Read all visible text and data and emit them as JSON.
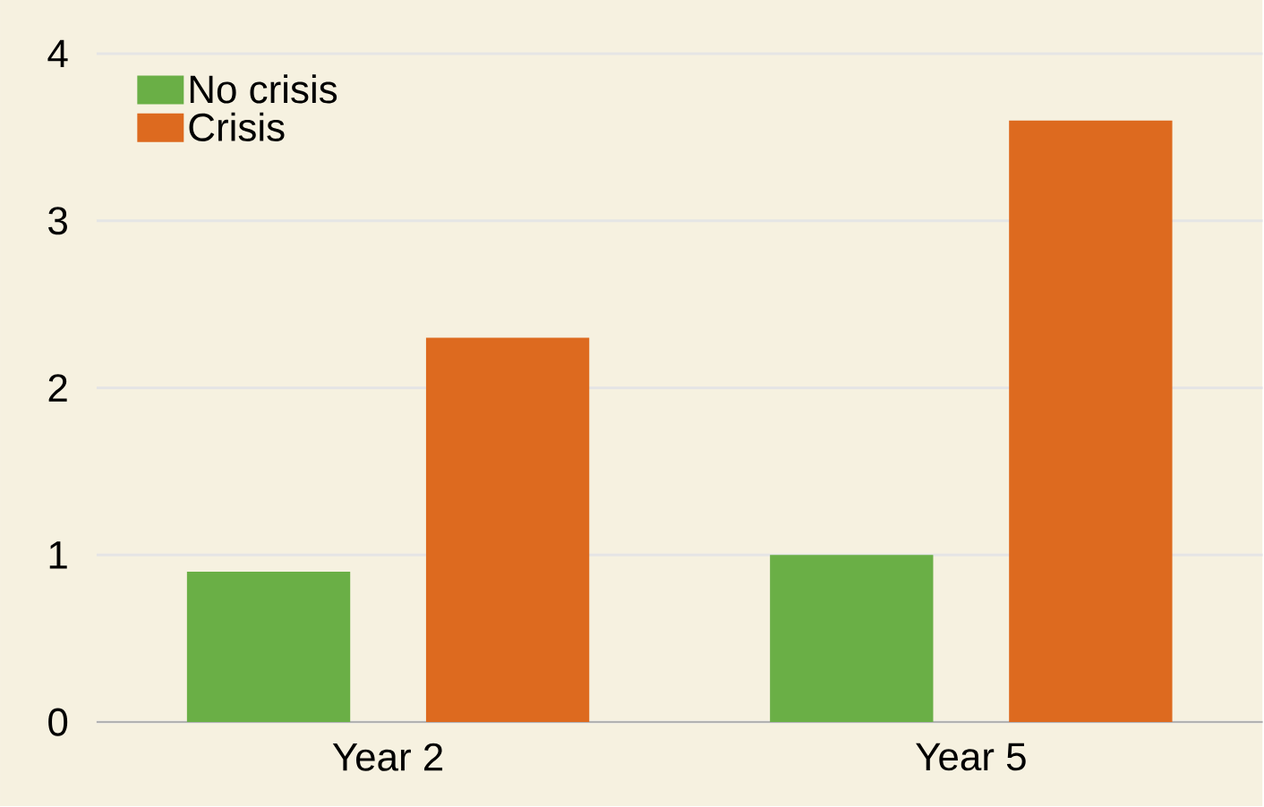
{
  "chart_data": {
    "type": "bar",
    "categories": [
      "Year 2",
      "Year 5"
    ],
    "series": [
      {
        "name": "No crisis",
        "color": "#6aaf46",
        "values": [
          0.9,
          1.0
        ]
      },
      {
        "name": "Crisis",
        "color": "#dd6a1f",
        "values": [
          2.3,
          3.6
        ]
      }
    ],
    "ylim": [
      0,
      4
    ],
    "yticks": [
      0,
      1,
      2,
      3,
      4
    ],
    "grid": "y",
    "legend": "top left"
  }
}
